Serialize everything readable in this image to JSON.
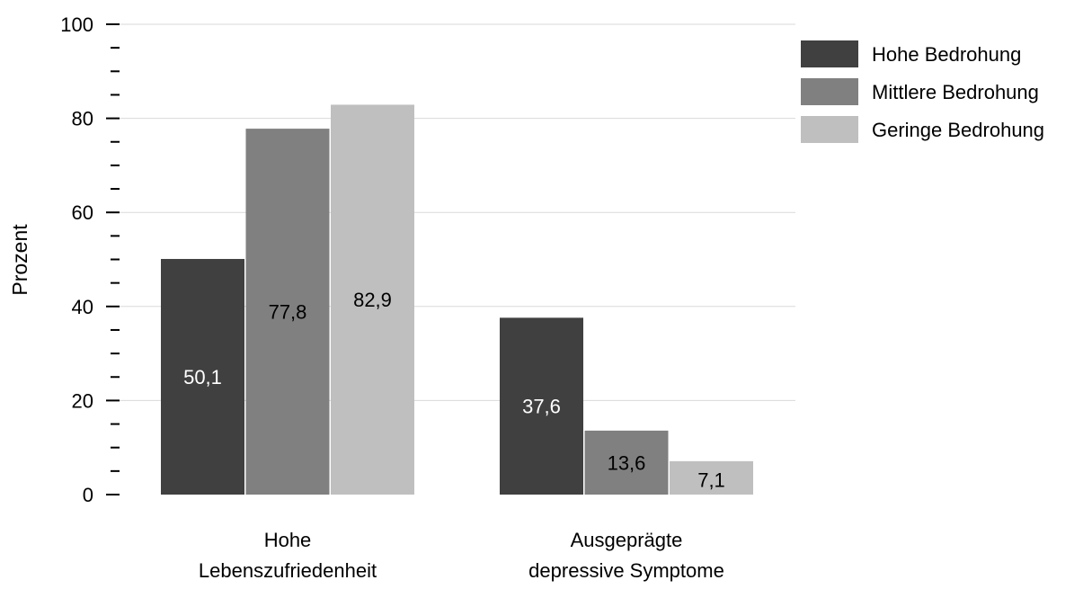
{
  "chart_data": {
    "type": "bar",
    "title": "",
    "xlabel": "",
    "ylabel": "Prozent",
    "ylim": [
      0,
      100
    ],
    "yticks": [
      0,
      20,
      40,
      60,
      80,
      100
    ],
    "minor_tick_step": 5,
    "grid": true,
    "legend_position": "right",
    "categories": [
      [
        "Hohe",
        "Lebenszufriedenheit"
      ],
      [
        "Ausgeprägte",
        "depressive Symptome"
      ]
    ],
    "series": [
      {
        "name": "Hohe Bedrohung",
        "values": [
          50.1,
          37.6
        ],
        "labels": [
          "50,1",
          "37,6"
        ],
        "color": "#404040",
        "label_color": "#ffffff"
      },
      {
        "name": "Mittlere Bedrohung",
        "values": [
          77.8,
          13.6
        ],
        "labels": [
          "77,8",
          "13,6"
        ],
        "color": "#808080",
        "label_color": "#000000"
      },
      {
        "name": "Geringe Bedrohung",
        "values": [
          82.9,
          7.1
        ],
        "labels": [
          "82,9",
          "7,1"
        ],
        "color": "#bfbfbf",
        "label_color": "#000000"
      }
    ],
    "gridline_color": "#d9d9d9"
  }
}
